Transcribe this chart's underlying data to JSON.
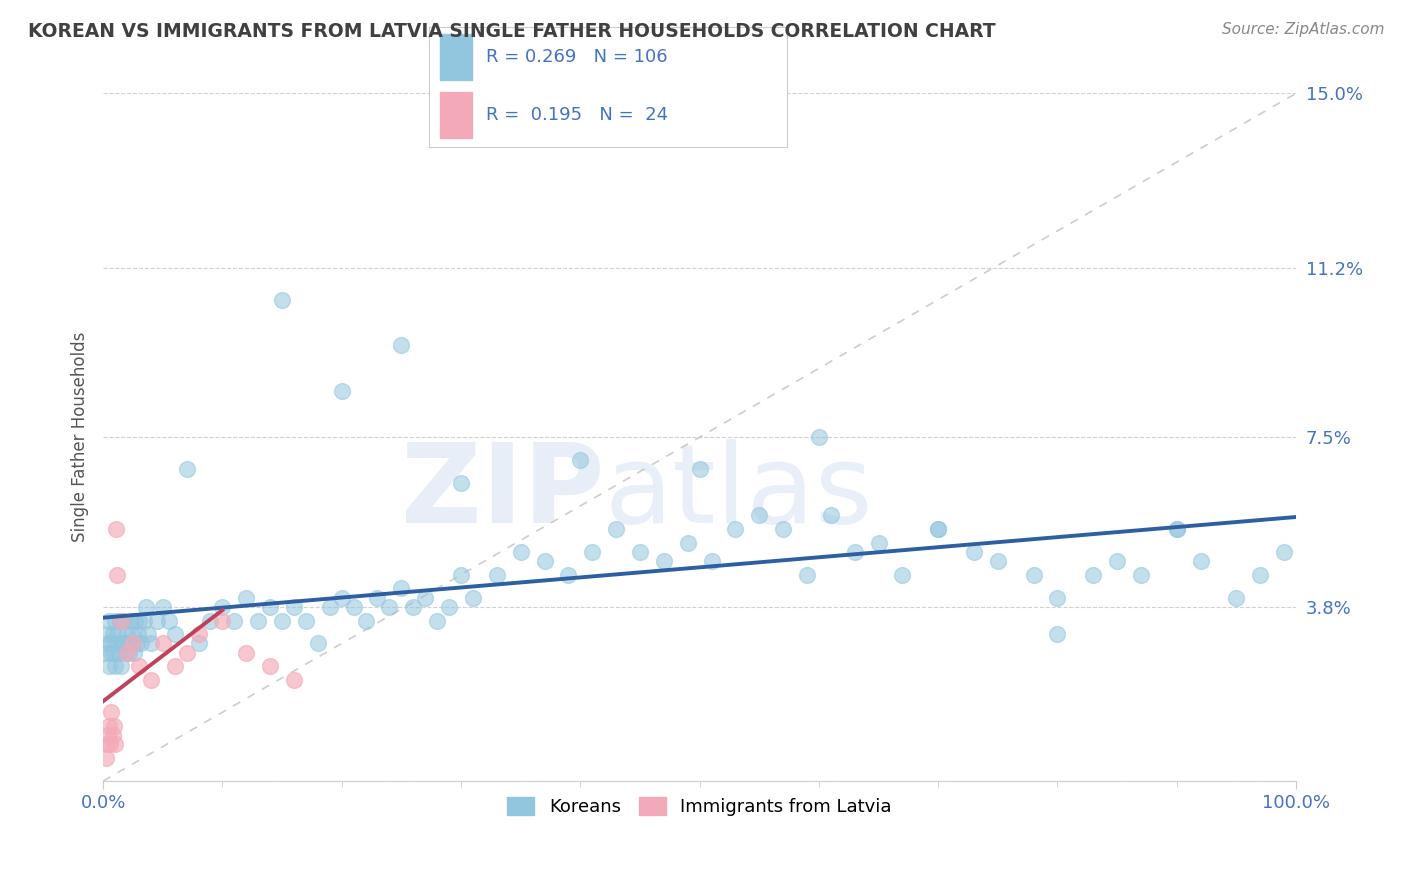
{
  "title": "KOREAN VS IMMIGRANTS FROM LATVIA SINGLE FATHER HOUSEHOLDS CORRELATION CHART",
  "source": "Source: ZipAtlas.com",
  "ylabel": "Single Father Households",
  "watermark": "ZIPatlas",
  "xlim": [
    0,
    100
  ],
  "ylim": [
    0,
    15
  ],
  "yticks": [
    0,
    3.8,
    7.5,
    11.2,
    15.0
  ],
  "ytick_labels": [
    "",
    "3.8%",
    "7.5%",
    "11.2%",
    "15.0%"
  ],
  "xtick_labels": [
    "0.0%",
    "100.0%"
  ],
  "legend_R1": "0.269",
  "legend_N1": "106",
  "legend_R2": "0.195",
  "legend_N2": "24",
  "legend_label1": "Koreans",
  "legend_label2": "Immigrants from Latvia",
  "color_blue": "#92c5de",
  "color_pink": "#f4a9b8",
  "color_text_blue": "#4472c4",
  "color_line_blue": "#2e5fa3",
  "color_line_pink": "#c0415a",
  "color_diag": "#c0c0c0",
  "title_color": "#404040",
  "background_color": "#ffffff",
  "korean_x": [
    0.2,
    0.3,
    0.4,
    0.5,
    0.5,
    0.6,
    0.7,
    0.8,
    0.9,
    1.0,
    1.0,
    1.1,
    1.2,
    1.3,
    1.4,
    1.5,
    1.6,
    1.7,
    1.8,
    1.9,
    2.0,
    2.1,
    2.2,
    2.3,
    2.4,
    2.5,
    2.6,
    2.7,
    2.8,
    2.9,
    3.0,
    3.2,
    3.4,
    3.6,
    3.8,
    4.0,
    4.5,
    5.0,
    5.5,
    6.0,
    7.0,
    8.0,
    9.0,
    10.0,
    11.0,
    12.0,
    13.0,
    14.0,
    15.0,
    16.0,
    17.0,
    18.0,
    19.0,
    20.0,
    21.0,
    22.0,
    23.0,
    24.0,
    25.0,
    26.0,
    27.0,
    28.0,
    29.0,
    30.0,
    31.0,
    33.0,
    35.0,
    37.0,
    39.0,
    41.0,
    43.0,
    45.0,
    47.0,
    49.0,
    51.0,
    53.0,
    55.0,
    57.0,
    59.0,
    61.0,
    63.0,
    65.0,
    67.0,
    70.0,
    73.0,
    75.0,
    78.0,
    80.0,
    83.0,
    85.0,
    87.0,
    90.0,
    92.0,
    95.0,
    97.0,
    99.0,
    15.0,
    20.0,
    25.0,
    30.0,
    40.0,
    50.0,
    60.0,
    70.0,
    80.0,
    90.0
  ],
  "korean_y": [
    2.8,
    3.2,
    3.0,
    2.5,
    3.5,
    3.0,
    2.8,
    3.2,
    2.8,
    3.5,
    2.5,
    3.0,
    3.2,
    2.8,
    3.5,
    2.5,
    3.0,
    3.5,
    3.0,
    2.8,
    3.2,
    3.0,
    2.8,
    3.5,
    3.2,
    3.0,
    2.8,
    3.5,
    3.0,
    3.2,
    3.5,
    3.0,
    3.5,
    3.8,
    3.2,
    3.0,
    3.5,
    3.8,
    3.5,
    3.2,
    6.8,
    3.0,
    3.5,
    3.8,
    3.5,
    4.0,
    3.5,
    3.8,
    3.5,
    3.8,
    3.5,
    3.0,
    3.8,
    4.0,
    3.8,
    3.5,
    4.0,
    3.8,
    4.2,
    3.8,
    4.0,
    3.5,
    3.8,
    4.5,
    4.0,
    4.5,
    5.0,
    4.8,
    4.5,
    5.0,
    5.5,
    5.0,
    4.8,
    5.2,
    4.8,
    5.5,
    5.8,
    5.5,
    4.5,
    5.8,
    5.0,
    5.2,
    4.5,
    5.5,
    5.0,
    4.8,
    4.5,
    4.0,
    4.5,
    4.8,
    4.5,
    5.5,
    4.8,
    4.0,
    4.5,
    5.0,
    10.5,
    8.5,
    9.5,
    6.5,
    7.0,
    6.8,
    7.5,
    5.5,
    3.2,
    5.5
  ],
  "latvian_x": [
    0.2,
    0.3,
    0.4,
    0.5,
    0.6,
    0.7,
    0.8,
    0.9,
    1.0,
    1.1,
    1.2,
    1.5,
    2.0,
    2.5,
    3.0,
    4.0,
    5.0,
    6.0,
    7.0,
    8.0,
    10.0,
    12.0,
    14.0,
    16.0
  ],
  "latvian_y": [
    0.5,
    0.8,
    1.0,
    1.2,
    0.8,
    1.5,
    1.0,
    1.2,
    0.8,
    5.5,
    4.5,
    3.5,
    2.8,
    3.0,
    2.5,
    2.2,
    3.0,
    2.5,
    2.8,
    3.2,
    3.5,
    2.8,
    2.5,
    2.2
  ]
}
